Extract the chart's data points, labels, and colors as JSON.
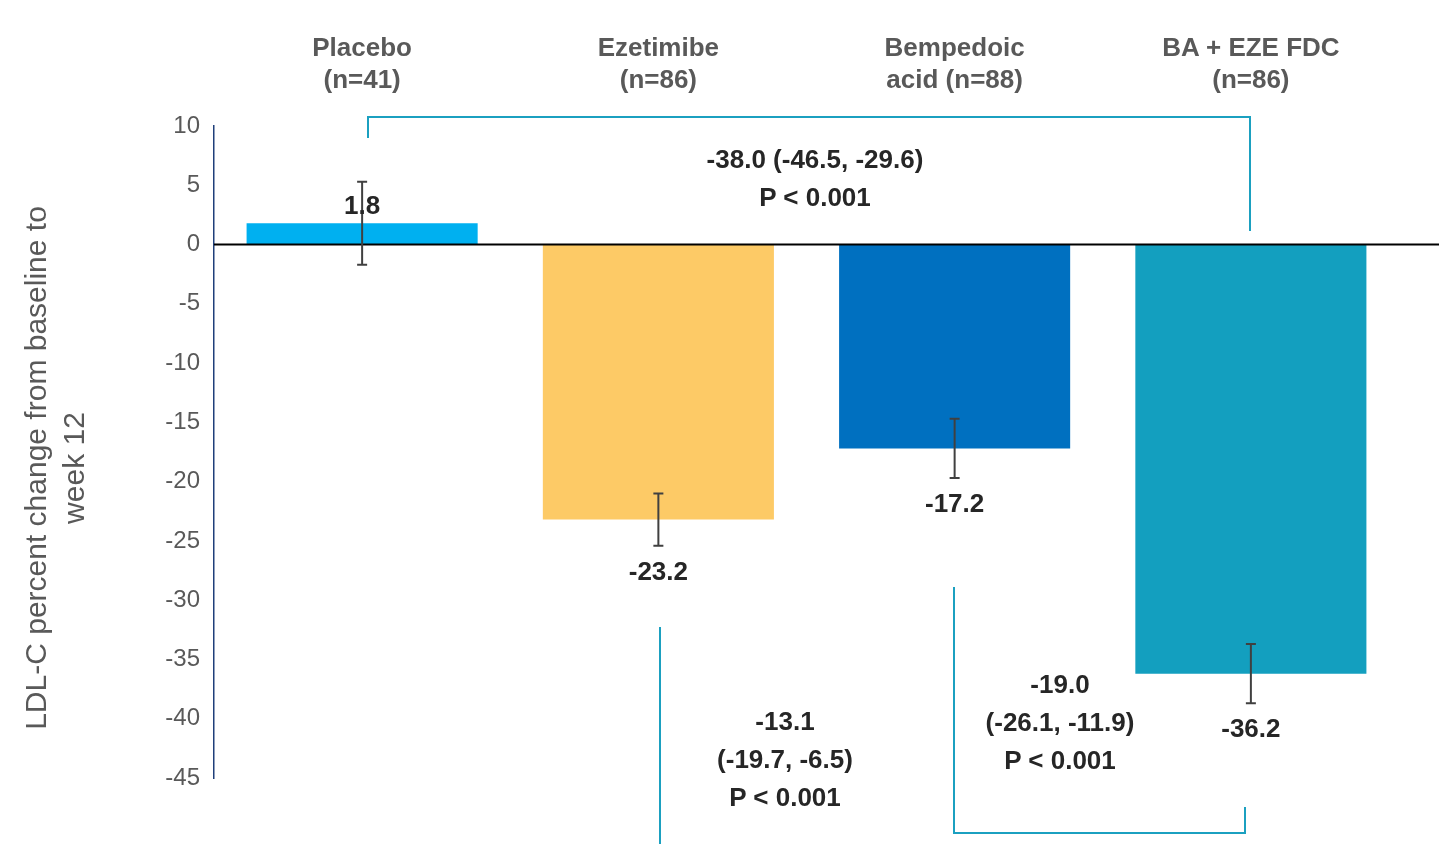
{
  "chart_data": {
    "type": "bar",
    "ylabel": "LDL-C percent change from baseline to week 12",
    "categories": [
      "Placebo\n(n=41)",
      "Ezetimibe\n(n=86)",
      "Bempedoic\nacid (n=88)",
      "BA + EZE FDC\n(n=86)"
    ],
    "values": [
      1.8,
      -23.2,
      -17.2,
      -36.2
    ],
    "colors": [
      "#00b0f0",
      "#fdca66",
      "#0070c0",
      "#139fbf"
    ],
    "errors": [
      3.5,
      2.2,
      2.5,
      2.5
    ],
    "data_labels": true,
    "ylim": [
      -45,
      10
    ],
    "yticks": [
      10,
      5,
      0,
      -5,
      -10,
      -15,
      -20,
      -25,
      -30,
      -35,
      -40,
      -45
    ],
    "annotations": [
      "-38.0 (-46.5, -29.6)\nP < 0.001",
      "-13.1\n(-19.7, -6.5)\nP < 0.001",
      "-19.0\n(-26.1, -11.9)\nP < 0.001"
    ]
  }
}
